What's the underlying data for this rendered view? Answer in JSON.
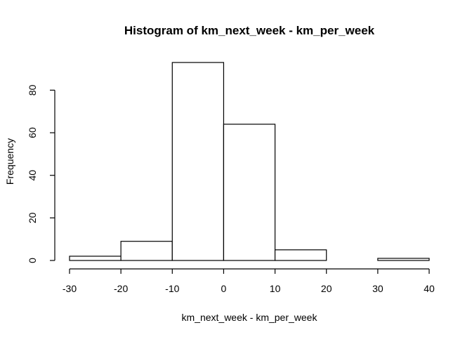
{
  "chart_data": {
    "type": "bar",
    "title": "Histogram of km_next_week - km_per_week",
    "xlabel": "km_next_week - km_per_week",
    "ylabel": "Frequency",
    "bin_edges": [
      -30,
      -20,
      -10,
      0,
      10,
      20,
      30,
      40
    ],
    "values": [
      2,
      9,
      93,
      64,
      5,
      0,
      1
    ],
    "xlim": [
      -30,
      40
    ],
    "ylim": [
      0,
      93
    ],
    "x_ticks": [
      "-30",
      "-20",
      "-10",
      "0",
      "10",
      "20",
      "30",
      "40"
    ],
    "y_ticks": [
      "0",
      "20",
      "40",
      "60",
      "80"
    ],
    "grid": false,
    "bar_fill": "#ffffff",
    "bar_stroke": "#000000"
  }
}
